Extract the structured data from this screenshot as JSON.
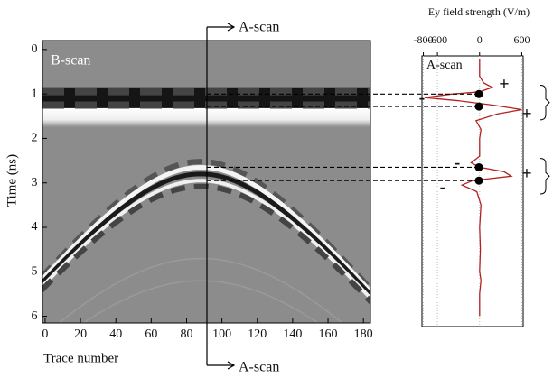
{
  "chart_data": [
    {
      "type": "image",
      "annotation": "B-scan",
      "xlabel": "Trace number",
      "ylabel": "Time (ns)",
      "xlim": [
        -1.5,
        184
      ],
      "ylim": [
        -0.2,
        6.15
      ],
      "inverted_y": true,
      "xticks": [
        0,
        20,
        40,
        60,
        80,
        100,
        120,
        140,
        160,
        180
      ],
      "yticks": [
        0,
        1,
        2,
        3,
        4,
        5,
        6
      ]
    },
    {
      "type": "line",
      "title": "Ey field strength (V/m)",
      "annotation": "A-scan",
      "xlim": [
        -820,
        620
      ],
      "xticks": [
        -800,
        -600,
        0,
        600
      ],
      "ylim": [
        0.14,
        6.24
      ],
      "inverted_y": true,
      "grid": true,
      "series": [
        {
          "color": "#b22222",
          "time": [
            0.2,
            0.6,
            0.75,
            0.85,
            0.95,
            1.0,
            1.08,
            1.15,
            1.25,
            1.35,
            1.45,
            1.6,
            1.8,
            2.0,
            2.4,
            2.55,
            2.65,
            2.75,
            2.85,
            2.95,
            3.05,
            3.2,
            3.5,
            4.0,
            4.5,
            5.0,
            5.2,
            5.5,
            6.0
          ],
          "values": [
            0,
            0,
            60,
            180,
            0,
            -400,
            -780,
            -300,
            200,
            600,
            250,
            -50,
            20,
            0,
            0,
            -120,
            0,
            350,
            450,
            -100,
            -250,
            -40,
            20,
            0,
            10,
            0,
            20,
            0,
            0
          ]
        }
      ],
      "markers": [
        1.0,
        1.28,
        2.65,
        2.95
      ]
    }
  ],
  "labels": {
    "scan_top": "A-scan",
    "scan_bottom": "A-scan",
    "signs": [
      "+",
      "+",
      "+",
      "-",
      "-",
      "-"
    ]
  }
}
